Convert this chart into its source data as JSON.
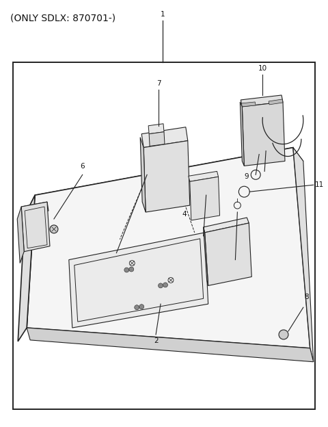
{
  "title": "(ONLY SDLX: 870701-)",
  "title_fontsize": 10,
  "title_color": "#111111",
  "background_color": "#ffffff",
  "border_color": "#222222",
  "line_color": "#222222",
  "text_color": "#111111",
  "label_fontsize": 7.5,
  "fig_width": 4.8,
  "fig_height": 6.24,
  "dpi": 100
}
